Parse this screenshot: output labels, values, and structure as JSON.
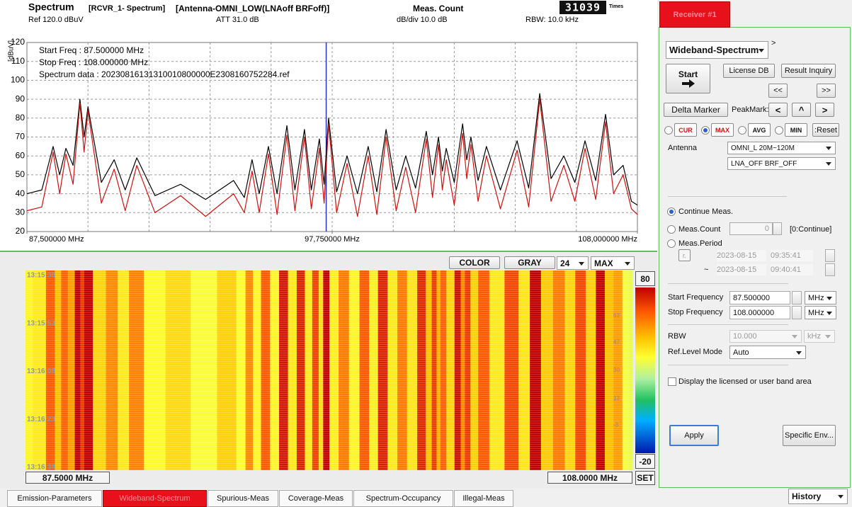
{
  "header": {
    "title": "Spectrum",
    "receiver": "[RCVR_1- Spectrum]",
    "antenna": "[Antenna-OMNI_LOW(LNAoff BRFoff)]",
    "count_label": "Meas. Count",
    "count": "31039",
    "count_unit": "Times",
    "ref": "Ref 120.0 dBuV",
    "att": "ATT 31.0 dB",
    "div": "dB/div 10.0 dB",
    "rbw": "RBW: 10.0 kHz"
  },
  "chart_data": {
    "type": "line",
    "y_label": "[dBuV]",
    "annotations": [
      "Start Freq : 87.500000 MHz",
      "Stop  Freq : 108.000000 MHz",
      "Spectrum data : 20230816131310010800000E2308160752284.ref"
    ],
    "x": [
      87.5,
      88.0,
      88.38,
      88.6,
      88.81,
      89.05,
      89.28,
      89.42,
      89.55,
      90.0,
      90.43,
      90.8,
      91.19,
      91.8,
      92.66,
      93.5,
      94.44,
      94.8,
      95.06,
      95.3,
      95.61,
      95.9,
      96.23,
      96.5,
      96.82,
      97.05,
      97.32,
      97.48,
      97.63,
      97.9,
      98.25,
      98.6,
      98.96,
      99.25,
      99.56,
      99.9,
      100.22,
      100.55,
      100.91,
      101.12,
      101.32,
      101.45,
      101.58,
      101.85,
      102.13,
      102.27,
      102.41,
      102.65,
      102.93,
      103.4,
      103.96,
      104.35,
      104.72,
      105.1,
      105.53,
      105.9,
      106.24,
      106.6,
      106.93,
      107.2,
      107.52,
      107.8,
      108.0
    ],
    "series": [
      {
        "color": "#000000",
        "values": [
          40,
          42,
          65,
          50,
          64,
          55,
          90,
          70,
          86,
          46,
          58,
          42,
          59,
          39,
          45,
          37,
          47,
          38,
          58,
          40,
          65,
          40,
          76,
          42,
          74,
          42,
          69,
          45,
          80,
          41,
          60,
          40,
          65,
          41,
          74,
          42,
          60,
          43,
          73,
          50,
          70,
          52,
          64,
          46,
          77,
          58,
          70,
          47,
          65,
          42,
          68,
          43,
          93,
          48,
          60,
          46,
          68,
          47,
          82,
          50,
          55,
          36,
          34
        ]
      },
      {
        "color": "#cc1111",
        "values": [
          31,
          33,
          62,
          40,
          61,
          45,
          88,
          62,
          84,
          35,
          53,
          31,
          55,
          30,
          39,
          28,
          40,
          30,
          52,
          30,
          61,
          29,
          71,
          31,
          70,
          32,
          64,
          35,
          77,
          30,
          56,
          28,
          60,
          29,
          70,
          31,
          54,
          30,
          69,
          38,
          66,
          42,
          58,
          34,
          72,
          48,
          66,
          36,
          60,
          32,
          63,
          33,
          90,
          36,
          55,
          36,
          64,
          37,
          78,
          40,
          50,
          32,
          29
        ]
      }
    ],
    "marker": 97.55,
    "xlim": [
      87.5,
      108
    ],
    "xticks": [
      {
        "value": 87.5,
        "label": "87,500000 MHz"
      },
      {
        "value": 97.75,
        "label": "97,750000 MHz"
      },
      {
        "value": 108,
        "label": "108,000000 MHz"
      }
    ],
    "ylim": [
      20,
      120
    ],
    "yticks": [
      20,
      30,
      40,
      50,
      60,
      70,
      80,
      90,
      100,
      110,
      120
    ],
    "grid": true
  },
  "waterfall": {
    "toolbar": [
      "COLOR",
      "GRAY"
    ],
    "rows": "24",
    "mode": "MAX",
    "timestamps": [
      "13:15:38",
      "13:15:53",
      "13:16:08",
      "13:16:23",
      "13:16:38"
    ],
    "colorbar": {
      "range": [
        -20,
        80
      ],
      "ticks": [
        63,
        47,
        30,
        13,
        -3
      ]
    },
    "set": "SET",
    "start": "87.5000 MHz",
    "stop": "108.0000 MHz"
  },
  "panel": {
    "tab": "Receiver #1",
    "mode": "Wideband-Spectrum",
    "next": ">",
    "start": "Start",
    "license": "License DB",
    "result": "Result Inquiry",
    "prev_page": "<<",
    "next_page": ">>",
    "delta": "Delta Marker",
    "peak_label": "PeakMark:",
    "peak_prev": "<",
    "peak_up": "^",
    "peak_next": ">",
    "traces": [
      "CUR",
      "MAX",
      "AVG",
      "MIN"
    ],
    "reset": ":Reset",
    "antenna_label": "Antenna",
    "antenna": "OMNI_L 20M~120M",
    "lna": "LNA_OFF BRF_OFF",
    "continue": "Continue Meas.",
    "count_label": "Meas.Count",
    "count": "0",
    "count_hint": "[0:Continue]",
    "period_label": "Meas.Period",
    "period_btn": "r.",
    "from_date": "2023-08-15",
    "from_time": "09:35:41",
    "tilde": "~",
    "to_date": "2023-08-15",
    "to_time": "09:40:41",
    "start_freq_label": "Start Frequency",
    "start_freq": "87.500000",
    "start_unit": "MHz",
    "stop_freq_label": "Stop Frequency",
    "stop_freq": "108.000000",
    "stop_unit": "MHz",
    "rbw_label": "RBW",
    "rbw": "10.000",
    "rbw_unit": "kHz",
    "ref_label": "Ref.Level Mode",
    "ref_mode": "Auto",
    "display": "Display the licensed or user band area",
    "apply": "Apply",
    "specific": "Specific Env..."
  },
  "tabs": [
    "Emission-Parameters",
    "Wideband-Spectrum",
    "Spurious-Meas",
    "Coverage-Meas",
    "Spectrum-Occupancy",
    "Illegal-Meas"
  ],
  "active_tab": 1,
  "history": "History"
}
